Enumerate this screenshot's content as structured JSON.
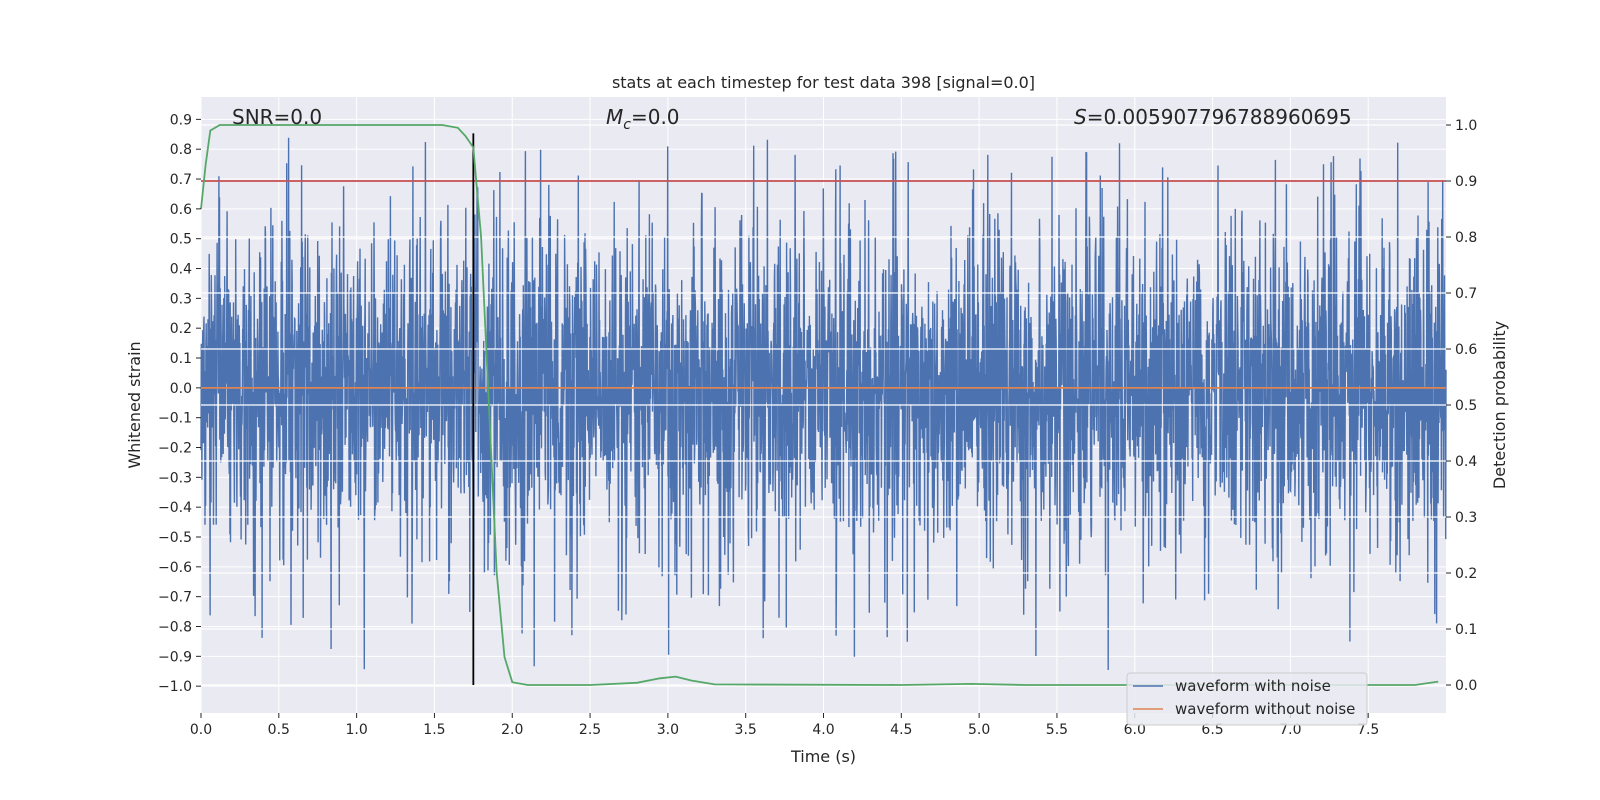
{
  "chart_data": {
    "type": "line",
    "title": "stats at each timestep for test data 398 [signal=0.0]",
    "xlabel": "Time (s)",
    "ylabel_left": "Whitened strain",
    "ylabel_right": "Detection probability",
    "xlim": [
      0.0,
      8.0
    ],
    "ylim_left": [
      -1.09,
      0.975
    ],
    "ylim_right": [
      -0.05,
      1.05
    ],
    "x_ticks": [
      "0.0",
      "0.5",
      "1.0",
      "1.5",
      "2.0",
      "2.5",
      "3.0",
      "3.5",
      "4.0",
      "4.5",
      "5.0",
      "5.5",
      "6.0",
      "6.5",
      "7.0",
      "7.5"
    ],
    "x_tick_values": [
      0.0,
      0.5,
      1.0,
      1.5,
      2.0,
      2.5,
      3.0,
      3.5,
      4.0,
      4.5,
      5.0,
      5.5,
      6.0,
      6.5,
      7.0,
      7.5
    ],
    "y_left_ticks": [
      "0.9",
      "0.8",
      "0.7",
      "0.6",
      "0.5",
      "0.4",
      "0.3",
      "0.2",
      "0.1",
      "0.0",
      "−0.1",
      "−0.2",
      "−0.3",
      "−0.4",
      "−0.5",
      "−0.6",
      "−0.7",
      "−0.8",
      "−0.9",
      "−1.0"
    ],
    "y_left_tick_values": [
      0.9,
      0.8,
      0.7,
      0.6,
      0.5,
      0.4,
      0.3,
      0.2,
      0.1,
      0.0,
      -0.1,
      -0.2,
      -0.3,
      -0.4,
      -0.5,
      -0.6,
      -0.7,
      -0.8,
      -0.9,
      -1.0
    ],
    "y_right_ticks": [
      "1.0",
      "0.9",
      "0.8",
      "0.7",
      "0.6",
      "0.5",
      "0.4",
      "0.3",
      "0.2",
      "0.1",
      "0.0"
    ],
    "y_right_tick_values": [
      1.0,
      0.9,
      0.8,
      0.7,
      0.6,
      0.5,
      0.4,
      0.3,
      0.2,
      0.1,
      0.0
    ],
    "annotations": {
      "snr": "SNR=0.0",
      "mc_symbol": "M",
      "mc_sub": "c",
      "mc_value": "=0.0",
      "s_symbol": "S",
      "s_value": "=0.005907796788960695"
    },
    "series": [
      {
        "name": "waveform with noise",
        "color": "#4c72b0",
        "description": "dense whitened-strain noise, roughly within ±0.5 with spikes up to 0.88 and down to −1.0"
      },
      {
        "name": "waveform without noise",
        "color": "#dd8452",
        "values_constant": 0.0
      },
      {
        "name": "detection probability",
        "color": "#55a868",
        "axis": "right",
        "x": [
          0.0,
          0.03,
          0.06,
          0.12,
          0.3,
          1.0,
          1.4,
          1.55,
          1.65,
          1.7,
          1.75,
          1.8,
          1.85,
          1.9,
          1.95,
          2.0,
          2.1,
          2.5,
          2.8,
          2.95,
          3.05,
          3.15,
          3.3,
          4.5,
          4.95,
          5.3,
          7.0,
          7.8,
          7.95
        ],
        "values": [
          0.85,
          0.93,
          0.99,
          1.0,
          1.0,
          1.0,
          1.0,
          1.0,
          0.995,
          0.98,
          0.96,
          0.8,
          0.5,
          0.2,
          0.05,
          0.005,
          0.0,
          0.0,
          0.004,
          0.012,
          0.015,
          0.008,
          0.001,
          0.0,
          0.002,
          0.0,
          0.0,
          0.0,
          0.006
        ]
      }
    ],
    "threshold": {
      "color": "#c44e52",
      "axis": "right",
      "value": 0.9
    },
    "marker_line": {
      "color": "#000000",
      "x": 1.75
    },
    "legend": {
      "position": "lower-right",
      "entries": [
        {
          "label": "waveform with noise",
          "color": "#4c72b0"
        },
        {
          "label": "waveform without noise",
          "color": "#dd8452"
        }
      ]
    }
  }
}
